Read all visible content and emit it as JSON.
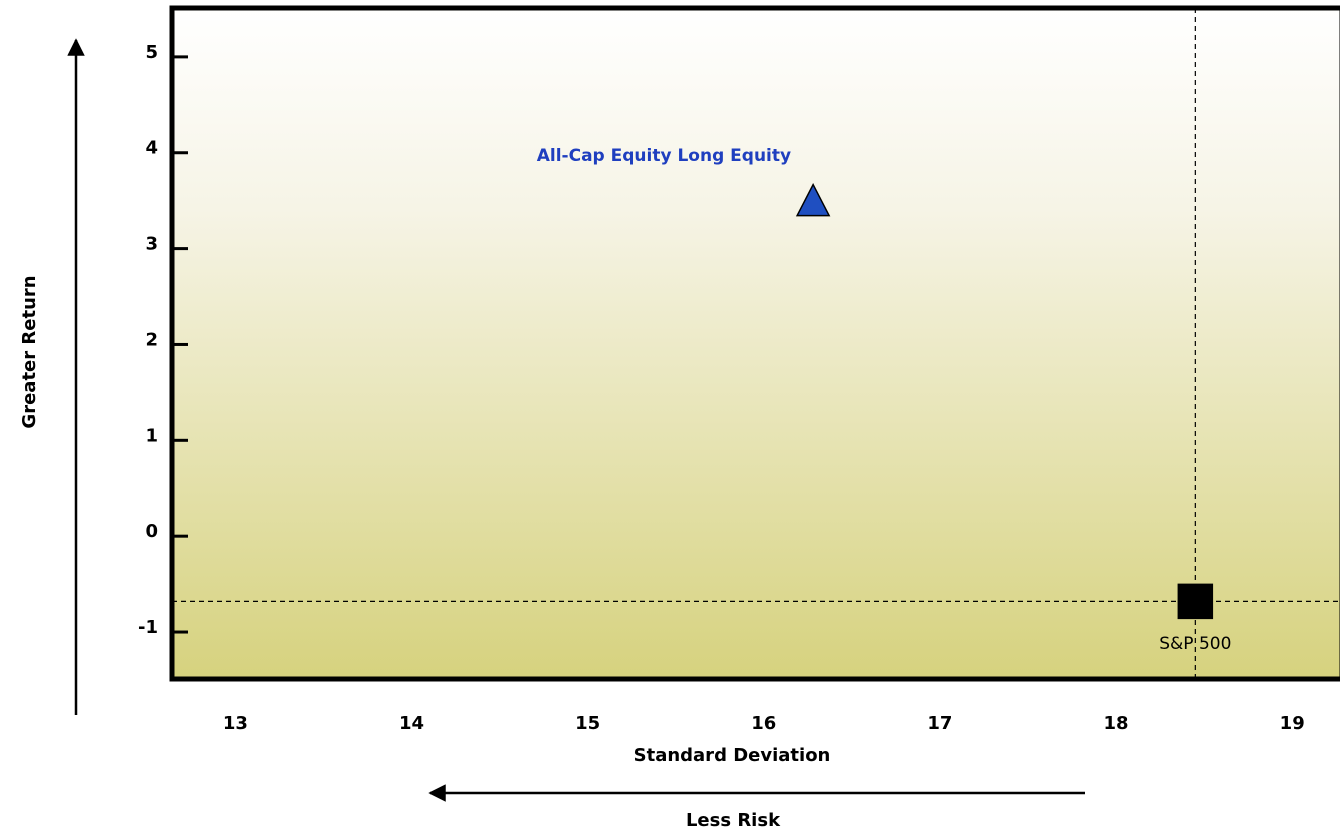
{
  "chart_data": {
    "type": "scatter",
    "x_label": "Standard Deviation",
    "y_label": "Greater Return",
    "x_annotation": "Less Risk",
    "xlim": [
      12.64,
      19.26
    ],
    "ylim": [
      -1.49,
      5.51
    ],
    "xticks": [
      13,
      14,
      15,
      16,
      17,
      18,
      19
    ],
    "yticks": [
      -1,
      0,
      1,
      2,
      3,
      4,
      5
    ],
    "reference_series": 1,
    "series": [
      {
        "name": "All-Cap Equity Long Equity",
        "color": "#1f4fc1",
        "label_color": "#1f3fbf",
        "marker": "triangle",
        "x": [
          16.28
        ],
        "values": [
          3.48
        ]
      },
      {
        "name": "S&P 500",
        "color": "#000000",
        "label_color": "#000000",
        "marker": "square",
        "x": [
          18.45
        ],
        "values": [
          -0.68
        ]
      }
    ]
  }
}
